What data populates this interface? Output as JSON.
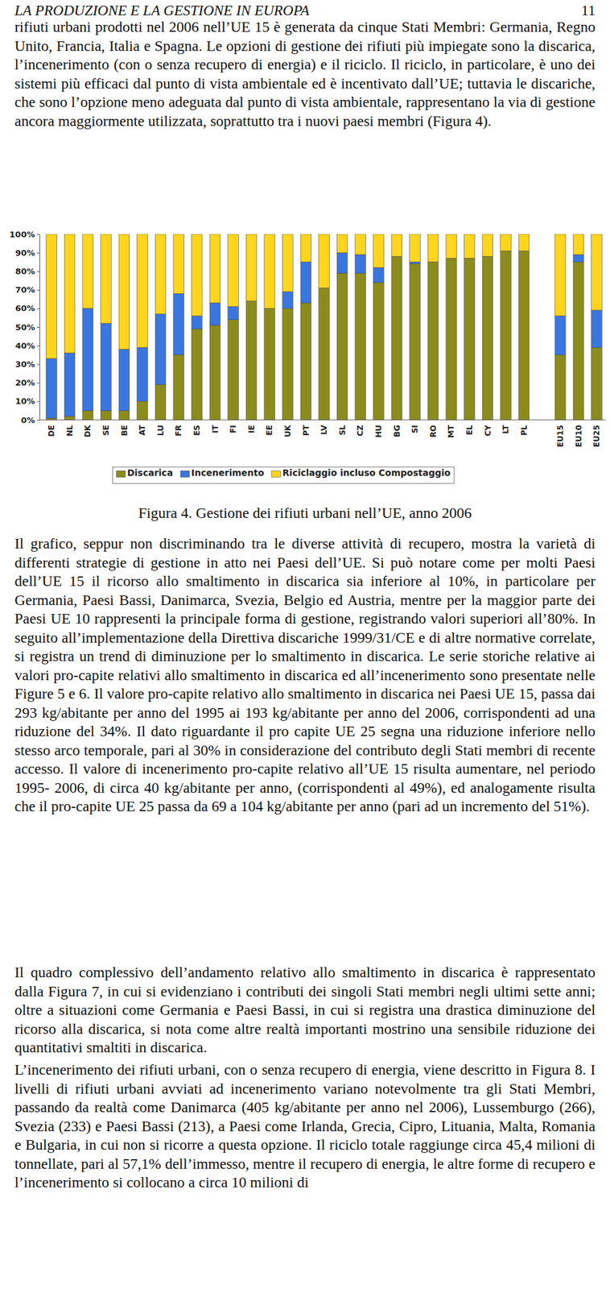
{
  "header": {
    "running_title": "LA PRODUZIONE E LA GESTIONE IN EUROPA",
    "page_number": 11
  },
  "paragraphs_before": [
    "rifiuti urbani prodotti nel 2006 nell’UE 15 è generata da cinque Stati Membri: Germania, Regno Unito, Francia, Italia e Spagna. Le opzioni di gestione dei rifiuti più impiegate sono la discarica, l’incenerimento (con o senza recupero di energia) e il riciclo. Il riciclo, in particolare, è uno dei sistemi più efficaci dal punto di vista ambientale ed è incentivato dall’UE; tuttavia le discariche, che sono l’opzione meno adeguata dal punto di vista ambientale, rappresentano la via di gestione ancora maggiormente utilizzata, soprattutto tra i nuovi paesi membri (Figura 4)."
  ],
  "chart_data": {
    "type": "bar",
    "stacked": true,
    "legend": "bottom",
    "grid": false,
    "categories": [
      "DE",
      "NL",
      "DK",
      "SE",
      "BE",
      "AT",
      "LU",
      "FR",
      "ES",
      "IT",
      "FI",
      "IE",
      "EE",
      "UK",
      "PT",
      "LV",
      "SL",
      "CZ",
      "HU",
      "BG",
      "SI",
      "RO",
      "MT",
      "EL",
      "CY",
      "LT",
      "PL",
      null,
      "EU15",
      "EU10",
      "EU25"
    ],
    "series": [
      {
        "name": "Discarica",
        "color": "#8c8c1c",
        "values": [
          1,
          2,
          5,
          5,
          5,
          10,
          19,
          35,
          49,
          51,
          54,
          64,
          60,
          60,
          63,
          71,
          79,
          79,
          74,
          88,
          84,
          85,
          87,
          87,
          88,
          91,
          91,
          null,
          35,
          85,
          39
        ]
      },
      {
        "name": "Incenerimento",
        "color": "#3a76e0",
        "values": [
          32,
          34,
          55,
          47,
          33,
          29,
          38,
          33,
          7,
          12,
          7,
          0,
          0,
          9,
          22,
          0,
          11,
          10,
          8,
          0,
          1,
          0,
          0,
          0,
          0,
          0,
          0,
          null,
          21,
          4,
          20
        ]
      },
      {
        "name": "Riciclaggio incluso Compostaggio",
        "color": "#ffd51e",
        "values": [
          67,
          64,
          40,
          48,
          62,
          61,
          43,
          32,
          44,
          37,
          39,
          36,
          40,
          31,
          15,
          29,
          10,
          11,
          18,
          12,
          15,
          15,
          13,
          13,
          12,
          9,
          9,
          null,
          44,
          11,
          41
        ]
      }
    ],
    "ylim": [
      0,
      100
    ],
    "yticks": [
      {
        "value": 0,
        "label": "0%"
      },
      {
        "value": 10,
        "label": "10%"
      },
      {
        "value": 20,
        "label": "20%"
      },
      {
        "value": 30,
        "label": "30%"
      },
      {
        "value": 40,
        "label": "40%"
      },
      {
        "value": 50,
        "label": "50%"
      },
      {
        "value": 60,
        "label": "60%"
      },
      {
        "value": 70,
        "label": "70%"
      },
      {
        "value": 80,
        "label": "80%"
      },
      {
        "value": 90,
        "label": "90%"
      },
      {
        "value": 100,
        "label": "100%"
      }
    ]
  },
  "caption": "Figura 4. Gestione dei rifiuti urbani nell’UE, anno 2006",
  "paragraphs_after": [
    "Il grafico, seppur non discriminando tra le diverse attività di recupero, mostra la varietà di differenti strategie di gestione in atto nei Paesi dell’UE. Si può notare come per molti Paesi dell’UE 15 il ricorso allo smaltimento in discarica sia inferiore al 10%, in particolare per Germania, Paesi Bassi, Danimarca, Svezia, Belgio ed Austria, mentre per la maggior parte dei Paesi UE 10 rappresenti la principale forma di gestione, registrando valori superiori all’80%. In seguito all’implementazione della Direttiva discariche 1999/31/CE e di altre normative correlate, si registra un trend di diminuzione per lo smaltimento in discarica. Le serie storiche relative ai valori pro-capite relativi allo smaltimento in discarica ed all’incenerimento sono presentate nelle Figure 5 e 6. Il valore pro-capite relativo allo smaltimento in discarica nei Paesi UE 15, passa dai 293 kg/abitante per anno del 1995 ai 193 kg/abitante per anno del 2006, corrispondenti ad una riduzione del 34%. Il dato riguardante il pro capite UE 25 segna una riduzione inferiore nello stesso arco temporale, pari al 30% in considerazione del contributo degli Stati membri di recente accesso. Il valore di incenerimento pro-capite relativo all’UE 15 risulta aumentare, nel periodo 1995- 2006, di circa 40 kg/abitante per anno, (corrispondenti al 49%), ed analogamente risulta che il pro-capite UE 25 passa da 69 a 104 kg/abitante per anno (pari ad un incremento del 51%).",
    "Il quadro complessivo dell’andamento relativo allo smaltimento in discarica è rappresentato dalla Figura 7, in cui si evidenziano i contributi dei singoli Stati membri negli ultimi sette anni; oltre a situazioni come Germania e Paesi Bassi, in cui si registra una drastica diminuzione del ricorso alla discarica, si nota come altre realtà importanti mostrino una sensibile riduzione dei quantitativi smaltiti in discarica.",
    "L’incenerimento dei rifiuti urbani, con o senza recupero di energia, viene descritto in Figura 8. I livelli di rifiuti urbani avviati ad incenerimento variano notevolmente tra gli Stati Membri, passando da realtà come Danimarca (405 kg/abitante per anno nel 2006), Lussemburgo (266), Svezia (233) e Paesi Bassi (213), a Paesi come Irlanda, Grecia, Cipro, Lituania, Malta, Romania e Bulgaria, in cui non si ricorre a questa opzione. Il riciclo totale raggiunge circa 45,4 milioni di tonnellate, pari al 57,1% dell’immesso, mentre il recupero di energia, le altre forme di recupero e l’incenerimento si collocano a circa 10 milioni di"
  ]
}
